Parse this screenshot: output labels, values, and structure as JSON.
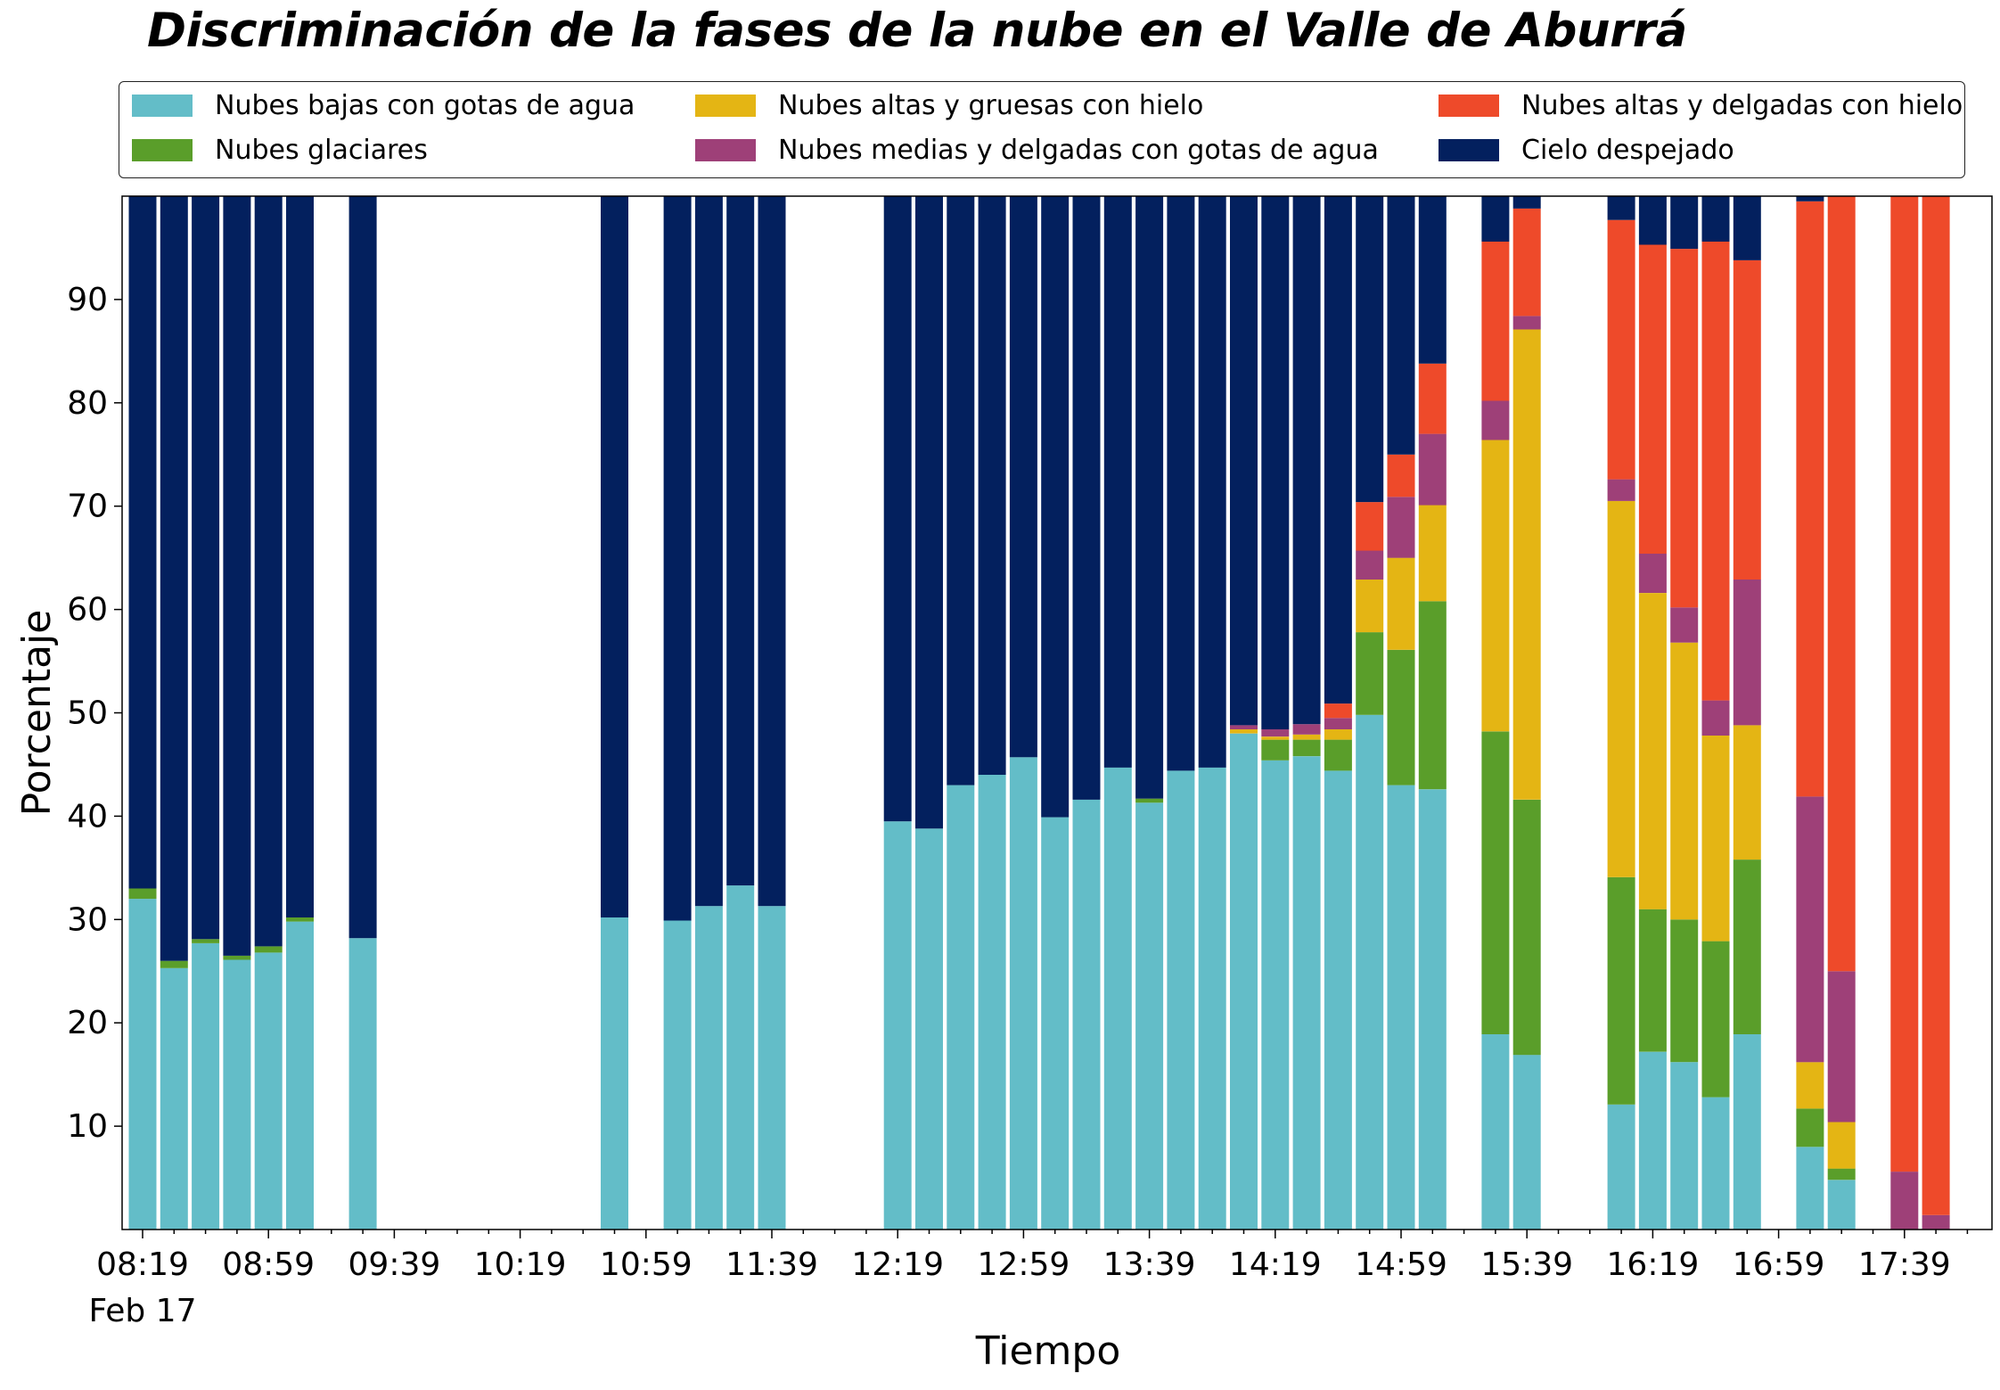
{
  "chart_data": {
    "type": "bar",
    "stacked": true,
    "title": "Discriminación de la fases de la nube en el Valle de Aburrá",
    "xlabel": "Tiempo",
    "ylabel": "Porcentaje",
    "ylim": [
      0,
      100
    ],
    "yticks": [
      10,
      20,
      30,
      40,
      50,
      60,
      70,
      80,
      90
    ],
    "grid": false,
    "legend_position": "top",
    "x_slot_minutes": 10,
    "x_start": "08:19",
    "x_end": "17:49",
    "xticks": [
      {
        "label": "08:19",
        "slot": 0,
        "sub": "Feb 17"
      },
      {
        "label": "08:59",
        "slot": 4
      },
      {
        "label": "09:39",
        "slot": 8
      },
      {
        "label": "10:19",
        "slot": 12
      },
      {
        "label": "10:59",
        "slot": 16
      },
      {
        "label": "11:39",
        "slot": 20
      },
      {
        "label": "12:19",
        "slot": 24
      },
      {
        "label": "12:59",
        "slot": 28
      },
      {
        "label": "13:39",
        "slot": 32
      },
      {
        "label": "14:19",
        "slot": 36
      },
      {
        "label": "14:59",
        "slot": 40
      },
      {
        "label": "15:39",
        "slot": 44
      },
      {
        "label": "16:19",
        "slot": 48
      },
      {
        "label": "16:59",
        "slot": 52
      },
      {
        "label": "17:39",
        "slot": 56
      }
    ],
    "series": [
      {
        "key": "bajas",
        "name": "Nubes bajas con gotas de agua",
        "color": "#63bdc8"
      },
      {
        "key": "glaciares",
        "name": "Nubes glaciares",
        "color": "#5a9e2a"
      },
      {
        "key": "altasg",
        "name": "Nubes altas y gruesas con hielo",
        "color": "#e4b514"
      },
      {
        "key": "medias",
        "name": "Nubes medias y delgadas con gotas de agua",
        "color": "#9e4078"
      },
      {
        "key": "altasd",
        "name": "Nubes altas y delgadas con hielo",
        "color": "#ee4a2a"
      },
      {
        "key": "despejado",
        "name": "Cielo despejado",
        "color": "#03205e"
      }
    ],
    "bars": [
      {
        "time": "08:19",
        "slot": 0,
        "bajas": 32.0,
        "glaciares": 1.0,
        "altasg": 0,
        "medias": 0,
        "altasd": 0,
        "despejado": 67.0
      },
      {
        "time": "08:29",
        "slot": 1,
        "bajas": 25.3,
        "glaciares": 0.7,
        "altasg": 0,
        "medias": 0,
        "altasd": 0,
        "despejado": 74.0
      },
      {
        "time": "08:39",
        "slot": 2,
        "bajas": 27.7,
        "glaciares": 0.4,
        "altasg": 0,
        "medias": 0,
        "altasd": 0,
        "despejado": 71.9
      },
      {
        "time": "08:49",
        "slot": 3,
        "bajas": 26.1,
        "glaciares": 0.4,
        "altasg": 0,
        "medias": 0,
        "altasd": 0,
        "despejado": 73.5
      },
      {
        "time": "08:59",
        "slot": 4,
        "bajas": 26.8,
        "glaciares": 0.6,
        "altasg": 0,
        "medias": 0,
        "altasd": 0,
        "despejado": 72.6
      },
      {
        "time": "09:09",
        "slot": 5,
        "bajas": 29.8,
        "glaciares": 0.4,
        "altasg": 0,
        "medias": 0,
        "altasd": 0,
        "despejado": 69.8
      },
      {
        "time": "09:29",
        "slot": 7,
        "bajas": 28.2,
        "glaciares": 0,
        "altasg": 0,
        "medias": 0,
        "altasd": 0,
        "despejado": 71.8
      },
      {
        "time": "10:49",
        "slot": 15,
        "bajas": 30.2,
        "glaciares": 0,
        "altasg": 0,
        "medias": 0,
        "altasd": 0,
        "despejado": 69.8
      },
      {
        "time": "11:09",
        "slot": 17,
        "bajas": 29.9,
        "glaciares": 0,
        "altasg": 0,
        "medias": 0,
        "altasd": 0,
        "despejado": 70.1
      },
      {
        "time": "11:19",
        "slot": 18,
        "bajas": 31.3,
        "glaciares": 0,
        "altasg": 0,
        "medias": 0,
        "altasd": 0,
        "despejado": 68.7
      },
      {
        "time": "11:29",
        "slot": 19,
        "bajas": 33.3,
        "glaciares": 0,
        "altasg": 0,
        "medias": 0,
        "altasd": 0,
        "despejado": 66.7
      },
      {
        "time": "11:39",
        "slot": 20,
        "bajas": 31.3,
        "glaciares": 0,
        "altasg": 0,
        "medias": 0,
        "altasd": 0,
        "despejado": 68.7
      },
      {
        "time": "12:19",
        "slot": 24,
        "bajas": 39.5,
        "glaciares": 0,
        "altasg": 0,
        "medias": 0,
        "altasd": 0,
        "despejado": 60.5
      },
      {
        "time": "12:29",
        "slot": 25,
        "bajas": 38.8,
        "glaciares": 0,
        "altasg": 0,
        "medias": 0,
        "altasd": 0,
        "despejado": 61.2
      },
      {
        "time": "12:39",
        "slot": 26,
        "bajas": 43.0,
        "glaciares": 0,
        "altasg": 0,
        "medias": 0,
        "altasd": 0,
        "despejado": 57.0
      },
      {
        "time": "12:49",
        "slot": 27,
        "bajas": 44.0,
        "glaciares": 0,
        "altasg": 0,
        "medias": 0,
        "altasd": 0,
        "despejado": 56.0
      },
      {
        "time": "12:59",
        "slot": 28,
        "bajas": 45.7,
        "glaciares": 0,
        "altasg": 0,
        "medias": 0,
        "altasd": 0,
        "despejado": 54.3
      },
      {
        "time": "13:09",
        "slot": 29,
        "bajas": 39.9,
        "glaciares": 0,
        "altasg": 0,
        "medias": 0,
        "altasd": 0,
        "despejado": 60.1
      },
      {
        "time": "13:19",
        "slot": 30,
        "bajas": 41.6,
        "glaciares": 0,
        "altasg": 0,
        "medias": 0,
        "altasd": 0,
        "despejado": 58.4
      },
      {
        "time": "13:29",
        "slot": 31,
        "bajas": 44.7,
        "glaciares": 0,
        "altasg": 0,
        "medias": 0,
        "altasd": 0,
        "despejado": 55.3
      },
      {
        "time": "13:39",
        "slot": 32,
        "bajas": 41.3,
        "glaciares": 0.4,
        "altasg": 0,
        "medias": 0,
        "altasd": 0,
        "despejado": 58.3
      },
      {
        "time": "13:49",
        "slot": 33,
        "bajas": 44.4,
        "glaciares": 0,
        "altasg": 0,
        "medias": 0,
        "altasd": 0,
        "despejado": 55.6
      },
      {
        "time": "13:59",
        "slot": 34,
        "bajas": 44.7,
        "glaciares": 0,
        "altasg": 0,
        "medias": 0,
        "altasd": 0,
        "despejado": 55.3
      },
      {
        "time": "14:09",
        "slot": 35,
        "bajas": 48.0,
        "glaciares": 0,
        "altasg": 0.4,
        "medias": 0.4,
        "altasd": 0,
        "despejado": 51.2
      },
      {
        "time": "14:19",
        "slot": 36,
        "bajas": 45.4,
        "glaciares": 2.0,
        "altasg": 0.3,
        "medias": 0.7,
        "altasd": 0,
        "despejado": 51.6
      },
      {
        "time": "14:29",
        "slot": 37,
        "bajas": 45.8,
        "glaciares": 1.6,
        "altasg": 0.5,
        "medias": 1.0,
        "altasd": 0,
        "despejado": 51.1
      },
      {
        "time": "14:39",
        "slot": 38,
        "bajas": 44.4,
        "glaciares": 3.0,
        "altasg": 1.0,
        "medias": 1.1,
        "altasd": 1.4,
        "despejado": 49.1
      },
      {
        "time": "14:49",
        "slot": 39,
        "bajas": 49.8,
        "glaciares": 8.0,
        "altasg": 5.1,
        "medias": 2.8,
        "altasd": 4.7,
        "despejado": 29.6
      },
      {
        "time": "14:59",
        "slot": 40,
        "bajas": 43.0,
        "glaciares": 13.1,
        "altasg": 8.9,
        "medias": 5.9,
        "altasd": 4.1,
        "despejado": 25.0
      },
      {
        "time": "15:09",
        "slot": 41,
        "bajas": 42.6,
        "glaciares": 18.2,
        "altasg": 9.3,
        "medias": 6.9,
        "altasd": 6.8,
        "despejado": 16.2
      },
      {
        "time": "15:29",
        "slot": 43,
        "bajas": 18.9,
        "glaciares": 29.3,
        "altasg": 28.2,
        "medias": 3.8,
        "altasd": 15.4,
        "despejado": 4.4
      },
      {
        "time": "15:39",
        "slot": 44,
        "bajas": 16.9,
        "glaciares": 24.7,
        "altasg": 45.5,
        "medias": 1.3,
        "altasd": 10.4,
        "despejado": 1.2
      },
      {
        "time": "16:09",
        "slot": 47,
        "bajas": 12.1,
        "glaciares": 22.0,
        "altasg": 36.4,
        "medias": 2.1,
        "altasd": 25.1,
        "despejado": 2.3
      },
      {
        "time": "16:19",
        "slot": 48,
        "bajas": 17.2,
        "glaciares": 13.8,
        "altasg": 30.6,
        "medias": 3.8,
        "altasd": 29.9,
        "despejado": 4.7
      },
      {
        "time": "16:29",
        "slot": 49,
        "bajas": 16.2,
        "glaciares": 13.8,
        "altasg": 26.8,
        "medias": 3.4,
        "altasd": 34.7,
        "despejado": 5.1
      },
      {
        "time": "16:39",
        "slot": 50,
        "bajas": 12.8,
        "glaciares": 15.1,
        "altasg": 19.9,
        "medias": 3.4,
        "altasd": 44.4,
        "despejado": 4.4
      },
      {
        "time": "16:49",
        "slot": 51,
        "bajas": 18.9,
        "glaciares": 16.9,
        "altasg": 13.0,
        "medias": 14.1,
        "altasd": 30.9,
        "despejado": 6.2
      },
      {
        "time": "17:09",
        "slot": 53,
        "bajas": 8.0,
        "glaciares": 3.7,
        "altasg": 4.5,
        "medias": 25.7,
        "altasd": 57.6,
        "despejado": 0.5
      },
      {
        "time": "17:19",
        "slot": 54,
        "bajas": 4.8,
        "glaciares": 1.1,
        "altasg": 4.5,
        "medias": 14.6,
        "altasd": 75.0,
        "despejado": 0
      },
      {
        "time": "17:39",
        "slot": 56,
        "bajas": 0,
        "glaciares": 0,
        "altasg": 0,
        "medias": 5.6,
        "altasd": 94.4,
        "despejado": 0
      },
      {
        "time": "17:49",
        "slot": 57,
        "bajas": 0,
        "glaciares": 0,
        "altasg": 0,
        "medias": 1.4,
        "altasd": 98.6,
        "despejado": 0
      }
    ]
  }
}
